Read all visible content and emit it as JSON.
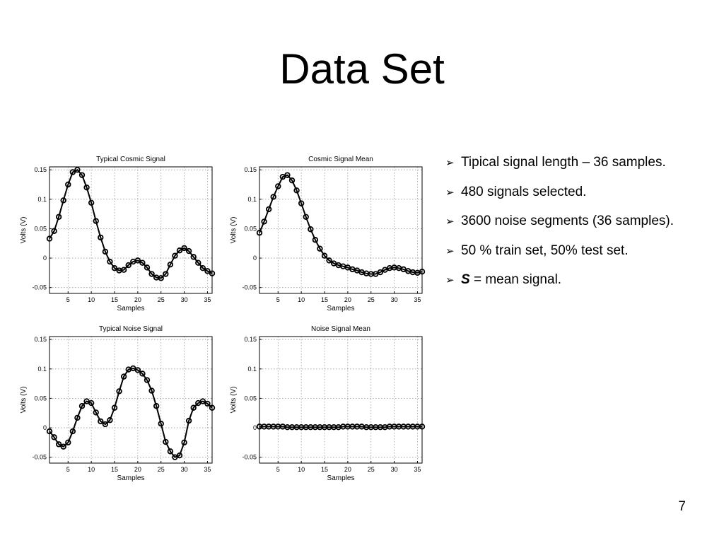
{
  "slide": {
    "title": "Data Set",
    "page_number": "7"
  },
  "bullets": [
    {
      "arrow": "➢",
      "text": "Tipical signal length – 36 samples."
    },
    {
      "arrow": "➢",
      "text": "480 signals selected."
    },
    {
      "arrow": "➢",
      "text": "3600 noise segments (36 samples)."
    },
    {
      "arrow": "➢",
      "text": "50 % train set, 50% test set."
    },
    {
      "arrow": "➢",
      "strong": "S",
      "text": " = mean signal."
    }
  ],
  "chart_data": [
    {
      "type": "line",
      "title": "Typical Cosmic Signal",
      "xlabel": "Samples",
      "ylabel": "Volts (V)",
      "xlim": [
        1,
        36
      ],
      "ylim": [
        -0.06,
        0.155
      ],
      "xticks": [
        5,
        10,
        15,
        20,
        25,
        30,
        35
      ],
      "yticks": [
        -0.05,
        0,
        0.05,
        0.1,
        0.15
      ],
      "ytick_labels": [
        "-0.05",
        "0",
        "0.05",
        "0.1",
        "0.15"
      ],
      "grid": true,
      "marker": "circle",
      "x": [
        1,
        2,
        3,
        4,
        5,
        6,
        7,
        8,
        9,
        10,
        11,
        12,
        13,
        14,
        15,
        16,
        17,
        18,
        19,
        20,
        21,
        22,
        23,
        24,
        25,
        26,
        27,
        28,
        29,
        30,
        31,
        32,
        33,
        34,
        35,
        36
      ],
      "values": [
        0.033,
        0.046,
        0.07,
        0.098,
        0.125,
        0.146,
        0.15,
        0.141,
        0.12,
        0.094,
        0.063,
        0.035,
        0.011,
        -0.006,
        -0.017,
        -0.021,
        -0.02,
        -0.012,
        -0.006,
        -0.004,
        -0.008,
        -0.016,
        -0.027,
        -0.033,
        -0.034,
        -0.027,
        -0.011,
        0.004,
        0.013,
        0.017,
        0.012,
        0.002,
        -0.008,
        -0.017,
        -0.022,
        -0.026
      ]
    },
    {
      "type": "line",
      "title": "Cosmic Signal Mean",
      "xlabel": "Samples",
      "ylabel": "Volts (V)",
      "xlim": [
        1,
        36
      ],
      "ylim": [
        -0.06,
        0.155
      ],
      "xticks": [
        5,
        10,
        15,
        20,
        25,
        30,
        35
      ],
      "yticks": [
        -0.05,
        0,
        0.05,
        0.1,
        0.15
      ],
      "ytick_labels": [
        "-0.05",
        "0",
        "0.05",
        "0.1",
        "0.15"
      ],
      "grid": true,
      "marker": "circle",
      "x": [
        1,
        2,
        3,
        4,
        5,
        6,
        7,
        8,
        9,
        10,
        11,
        12,
        13,
        14,
        15,
        16,
        17,
        18,
        19,
        20,
        21,
        22,
        23,
        24,
        25,
        26,
        27,
        28,
        29,
        30,
        31,
        32,
        33,
        34,
        35,
        36
      ],
      "values": [
        0.043,
        0.062,
        0.083,
        0.104,
        0.122,
        0.138,
        0.141,
        0.132,
        0.115,
        0.093,
        0.07,
        0.049,
        0.031,
        0.016,
        0.004,
        -0.004,
        -0.009,
        -0.012,
        -0.014,
        -0.016,
        -0.019,
        -0.021,
        -0.024,
        -0.026,
        -0.027,
        -0.027,
        -0.024,
        -0.02,
        -0.017,
        -0.016,
        -0.017,
        -0.019,
        -0.022,
        -0.024,
        -0.025,
        -0.023
      ]
    },
    {
      "type": "line",
      "title": "Typical Noise Signal",
      "xlabel": "Samples",
      "ylabel": "Volts (V)",
      "xlim": [
        1,
        36
      ],
      "ylim": [
        -0.06,
        0.155
      ],
      "xticks": [
        5,
        10,
        15,
        20,
        25,
        30,
        35
      ],
      "yticks": [
        -0.05,
        0,
        0.05,
        0.1,
        0.15
      ],
      "ytick_labels": [
        "-0.05",
        "0",
        "0.05",
        "0.1",
        "0.15"
      ],
      "grid": true,
      "marker": "circle",
      "x": [
        1,
        2,
        3,
        4,
        5,
        6,
        7,
        8,
        9,
        10,
        11,
        12,
        13,
        14,
        15,
        16,
        17,
        18,
        19,
        20,
        21,
        22,
        23,
        24,
        25,
        26,
        27,
        28,
        29,
        30,
        31,
        32,
        33,
        34,
        35,
        36
      ],
      "values": [
        -0.006,
        -0.016,
        -0.028,
        -0.032,
        -0.025,
        -0.006,
        0.017,
        0.037,
        0.045,
        0.042,
        0.026,
        0.011,
        0.006,
        0.013,
        0.034,
        0.062,
        0.087,
        0.099,
        0.101,
        0.098,
        0.092,
        0.081,
        0.063,
        0.037,
        0.007,
        -0.024,
        -0.04,
        -0.05,
        -0.047,
        -0.025,
        0.012,
        0.034,
        0.042,
        0.045,
        0.041,
        0.034
      ]
    },
    {
      "type": "line",
      "title": "Noise Signal Mean",
      "xlabel": "Samples",
      "ylabel": "Volts (V)",
      "xlim": [
        1,
        36
      ],
      "ylim": [
        -0.06,
        0.155
      ],
      "xticks": [
        5,
        10,
        15,
        20,
        25,
        30,
        35
      ],
      "yticks": [
        -0.05,
        0,
        0.05,
        0.1,
        0.15
      ],
      "ytick_labels": [
        "-0.05",
        "0",
        "0.05",
        "0.1",
        "0.15"
      ],
      "grid": true,
      "marker": "circle",
      "x": [
        1,
        2,
        3,
        4,
        5,
        6,
        7,
        8,
        9,
        10,
        11,
        12,
        13,
        14,
        15,
        16,
        17,
        18,
        19,
        20,
        21,
        22,
        23,
        24,
        25,
        26,
        27,
        28,
        29,
        30,
        31,
        32,
        33,
        34,
        35,
        36
      ],
      "values": [
        0.002,
        0.002,
        0.002,
        0.002,
        0.002,
        0.002,
        0.001,
        0.001,
        0.001,
        0.001,
        0.001,
        0.001,
        0.001,
        0.001,
        0.001,
        0.001,
        0.001,
        0.001,
        0.002,
        0.002,
        0.002,
        0.002,
        0.002,
        0.001,
        0.001,
        0.001,
        0.001,
        0.001,
        0.002,
        0.002,
        0.002,
        0.002,
        0.002,
        0.002,
        0.002,
        0.002
      ]
    }
  ]
}
